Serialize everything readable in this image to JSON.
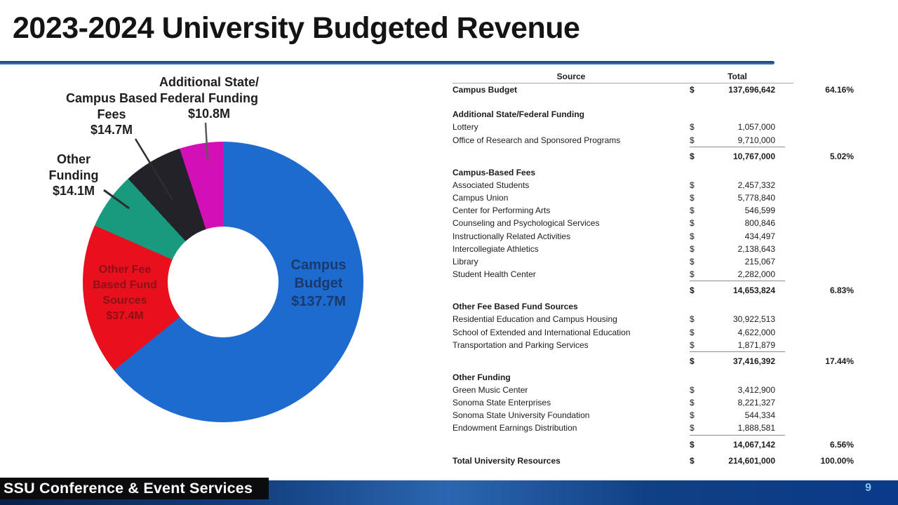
{
  "slide": {
    "title": "2023-2024 University Budgeted Revenue",
    "footer_label": "SSU Conference & Event Services",
    "page_number": "9",
    "accent_colors": {
      "title_rule": "#2f6aa8",
      "footer_bar": "#0a3a88",
      "footer_badge_bg": "#0c0c0e",
      "page_number": "#85c6ec"
    }
  },
  "chart_data": {
    "type": "pie",
    "style": "donut",
    "title": "2023-2024 University Budgeted Revenue",
    "legend_position": "none",
    "units": "USD",
    "total_value": 214601000,
    "slices": [
      {
        "label": "Campus Budget",
        "value": 137696642,
        "display_value": "$137.7M",
        "percent": 64.16,
        "color": "#1e6bd0",
        "callout_text": "Campus\nBudget\n$137.7M",
        "callout_color": "#1b3a6b",
        "label_placement": "inside"
      },
      {
        "label": "Other Fee Based Fund Sources",
        "value": 37416392,
        "display_value": "$37.4M",
        "percent": 17.44,
        "color": "#e8101c",
        "callout_text": "Other Fee\nBased Fund\nSources\n$37.4M",
        "callout_color": "#8c1116",
        "label_placement": "inside"
      },
      {
        "label": "Other Funding",
        "value": 14067142,
        "display_value": "$14.1M",
        "percent": 6.56,
        "color": "#189a7f",
        "callout_text": "Other\nFunding\n$14.1M",
        "callout_color": "#1e1e1e",
        "label_placement": "outside"
      },
      {
        "label": "Campus Based Fees",
        "value": 14653824,
        "display_value": "$14.7M",
        "percent": 6.83,
        "color": "#222228",
        "callout_text": "Campus Based\nFees\n$14.7M",
        "callout_color": "#1e1e1e",
        "label_placement": "outside"
      },
      {
        "label": "Additional State/Federal Funding",
        "value": 10767000,
        "display_value": "$10.8M",
        "percent": 5.02,
        "color": "#d30fb8",
        "callout_text": "Additional State/\nFederal Funding\n$10.8M",
        "callout_color": "#1e1e1e",
        "label_placement": "outside"
      }
    ]
  },
  "table": {
    "headers": {
      "source": "Source",
      "total": "Total"
    },
    "rows": [
      {
        "type": "item bold",
        "label": "Campus Budget",
        "dollar": "$",
        "amount": "137,696,642",
        "percent": "64.16%"
      },
      {
        "type": "spacer",
        "h": 17
      },
      {
        "type": "section",
        "label": "Additional State/Federal Funding"
      },
      {
        "type": "item",
        "label": "Lottery",
        "dollar": "$",
        "amount": "1,057,000"
      },
      {
        "type": "item",
        "label": "Office of Research and Sponsored Programs",
        "dollar": "$",
        "amount": "9,710,000"
      },
      {
        "type": "subtotal",
        "dollar": "$",
        "amount": "10,767,000",
        "percent": "5.02%"
      },
      {
        "type": "section pad",
        "label": "Campus-Based Fees"
      },
      {
        "type": "item",
        "label": "Associated Students",
        "dollar": "$",
        "amount": "2,457,332"
      },
      {
        "type": "item",
        "label": "Campus Union",
        "dollar": "$",
        "amount": "5,778,840"
      },
      {
        "type": "item",
        "label": "Center for Performing Arts",
        "dollar": "$",
        "amount": "546,599"
      },
      {
        "type": "item",
        "label": "Counseling and Psychological Services",
        "dollar": "$",
        "amount": "800,846"
      },
      {
        "type": "item",
        "label": "Instructionally Related Activities",
        "dollar": "$",
        "amount": "434,497"
      },
      {
        "type": "item",
        "label": "Intercollegiate Athletics",
        "dollar": "$",
        "amount": "2,138,643"
      },
      {
        "type": "item",
        "label": "Library",
        "dollar": "$",
        "amount": "215,067"
      },
      {
        "type": "item",
        "label": "Student Health Center",
        "dollar": "$",
        "amount": "2,282,000"
      },
      {
        "type": "subtotal",
        "dollar": "$",
        "amount": "14,653,824",
        "percent": "6.83%"
      },
      {
        "type": "section pad",
        "label": "Other Fee Based Fund Sources"
      },
      {
        "type": "item",
        "label": "Residential Education and Campus Housing",
        "dollar": "$",
        "amount": "30,922,513"
      },
      {
        "type": "item",
        "label": "School of Extended and International Education",
        "dollar": "$",
        "amount": "4,622,000"
      },
      {
        "type": "item",
        "label": "Transportation and Parking Services",
        "dollar": "$",
        "amount": "1,871,879"
      },
      {
        "type": "subtotal",
        "dollar": "$",
        "amount": "37,416,392",
        "percent": "17.44%"
      },
      {
        "type": "section pad",
        "label": "Other Funding"
      },
      {
        "type": "item",
        "label": "Green Music Center",
        "dollar": "$",
        "amount": "3,412,900"
      },
      {
        "type": "item",
        "label": "Sonoma State Enterprises",
        "dollar": "$",
        "amount": "8,221,327"
      },
      {
        "type": "item",
        "label": "Sonoma State University Foundation",
        "dollar": "$",
        "amount": "544,334"
      },
      {
        "type": "item",
        "label": "Endowment Earnings Distribution",
        "dollar": "$",
        "amount": "1,888,581"
      },
      {
        "type": "subtotal",
        "dollar": "$",
        "amount": "14,067,142",
        "percent": "6.56%"
      },
      {
        "type": "total",
        "label": "Total University Resources",
        "dollar": "$",
        "amount": "214,601,000",
        "percent": "100.00%"
      }
    ]
  }
}
